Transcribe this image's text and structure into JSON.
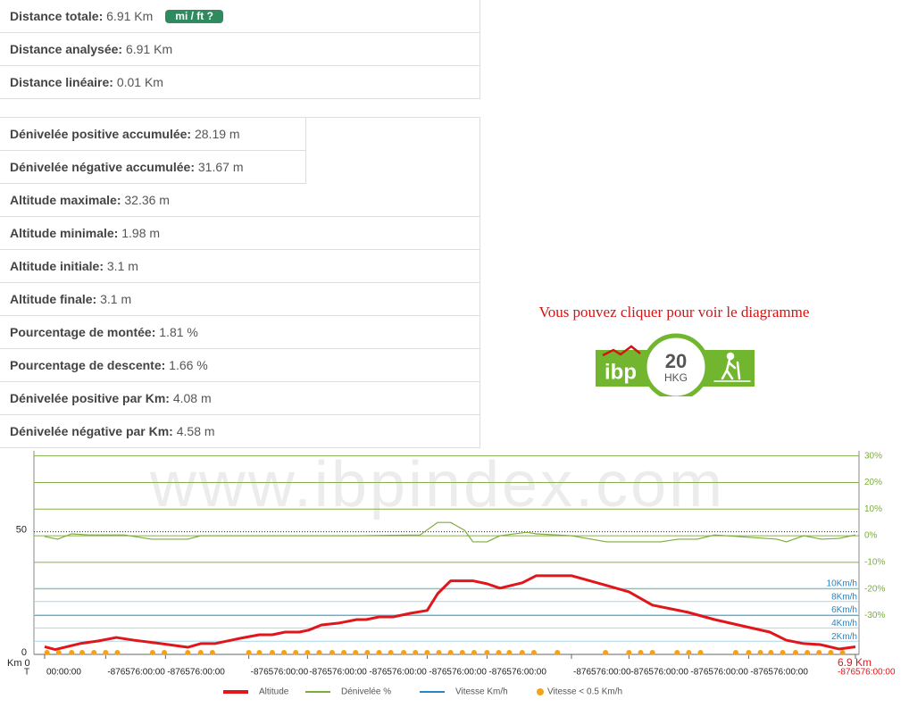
{
  "stats": {
    "toggle": "mi / ft ?",
    "groups": [
      [
        {
          "label": "Distance totale:",
          "value": "6.91 Km"
        },
        {
          "label": "Distance analysée:",
          "value": "6.91 Km"
        },
        {
          "label": "Distance linéaire:",
          "value": "0.01 Km"
        }
      ],
      [
        {
          "label": "Dénivelée positive accumulée:",
          "value": "28.19 m"
        },
        {
          "label": "Dénivelée négative accumulée:",
          "value": "31.67 m"
        },
        {
          "label": "Altitude maximale:",
          "value": "32.36 m"
        },
        {
          "label": "Altitude minimale:",
          "value": "1.98 m"
        },
        {
          "label": "Altitude initiale:",
          "value": "3.1 m"
        },
        {
          "label": "Altitude finale:",
          "value": "3.1 m"
        },
        {
          "label": "Pourcentage de montée:",
          "value": "1.81 %"
        },
        {
          "label": "Pourcentage de descente:",
          "value": "1.66 %"
        },
        {
          "label": "Dénivelée positive par Km:",
          "value": "4.08 m"
        },
        {
          "label": "Dénivelée négative par Km:",
          "value": "4.58 m"
        }
      ]
    ]
  },
  "badge": {
    "caption": "Vous pouvez cliquer pour voir le diagramme",
    "logo": "ibp",
    "score": "20",
    "code": "HKG"
  },
  "chart_data": {
    "type": "line",
    "watermark": "www.ibpindex.com",
    "x_start_label": "Km 0",
    "x_end_label": "6.9 Km",
    "time_axis_label": "T",
    "xlim": [
      0,
      6.91
    ],
    "xticks": [
      {
        "value": 0,
        "label": "00:00:00"
      },
      {
        "value": 0.52,
        "label": "-876576:00:00"
      },
      {
        "value": 1.03,
        "label": "-876576:00:00"
      },
      {
        "value": 1.74,
        "label": "-876576:00:00"
      },
      {
        "value": 2.24,
        "label": "-876576:00:00"
      },
      {
        "value": 2.75,
        "label": "-876576:00:00"
      },
      {
        "value": 3.26,
        "label": "-876576:00:00"
      },
      {
        "value": 3.77,
        "label": "-876576:00:00"
      },
      {
        "value": 4.49,
        "label": "-876576:00:00"
      },
      {
        "value": 4.98,
        "label": "-876576:00:00"
      },
      {
        "value": 5.49,
        "label": "-876576:00:00"
      },
      {
        "value": 6.0,
        "label": "-876576:00:00"
      },
      {
        "value": 6.91,
        "label": "-876576:00:00"
      }
    ],
    "ylim": [
      0,
      83
    ],
    "yticks": [
      0,
      50
    ],
    "y2lim": [
      -44.6,
      31.9
    ],
    "y2ticks": [
      {
        "value": 30,
        "label": "30%"
      },
      {
        "value": 20,
        "label": "20%"
      },
      {
        "value": 10,
        "label": "10%"
      },
      {
        "value": 0,
        "label": "0%"
      },
      {
        "value": -10,
        "label": "-10%"
      },
      {
        "value": -20,
        "label": "-20%"
      },
      {
        "value": -30,
        "label": "-30%"
      }
    ],
    "y3lim": [
      0,
      30.8
    ],
    "y3ticks": [
      {
        "value": 10,
        "label": "10Km/h"
      },
      {
        "value": 8,
        "label": "8Km/h"
      },
      {
        "value": 6,
        "label": "6Km/h"
      },
      {
        "value": 4,
        "label": "4Km/h"
      },
      {
        "value": 2,
        "label": "2Km/h"
      }
    ],
    "series": [
      {
        "name": "Altitude",
        "color": "#e0161b",
        "axis": "y",
        "x": [
          0,
          0.09,
          0.3,
          0.46,
          0.61,
          0.76,
          0.99,
          1.22,
          1.33,
          1.45,
          1.67,
          1.83,
          1.94,
          2.05,
          2.17,
          2.25,
          2.36,
          2.51,
          2.66,
          2.74,
          2.85,
          2.97,
          3.12,
          3.26,
          3.35,
          3.46,
          3.65,
          3.77,
          3.88,
          4.07,
          4.19,
          4.49,
          4.79,
          4.98,
          5.18,
          5.48,
          5.71,
          5.94,
          6.18,
          6.32,
          6.47,
          6.61,
          6.77,
          6.91
        ],
        "values": [
          3.1,
          1.98,
          4.4,
          5.5,
          6.9,
          5.8,
          4.4,
          2.9,
          4.4,
          4.4,
          6.6,
          8.0,
          8.0,
          9.1,
          9.1,
          9.9,
          12.0,
          12.8,
          14.2,
          14.2,
          15.3,
          15.3,
          16.8,
          17.9,
          24.8,
          30.0,
          30.0,
          28.8,
          27.0,
          29.2,
          32.1,
          32.1,
          28.1,
          25.5,
          20.1,
          17.2,
          14.2,
          11.7,
          9.1,
          5.8,
          4.4,
          4.0,
          2.2,
          3.1
        ]
      },
      {
        "name": "Dénivelée %",
        "color": "#7cad3e",
        "axis": "y2",
        "x": [
          0,
          0.11,
          0.23,
          0.38,
          0.68,
          0.91,
          1.22,
          1.33,
          1.9,
          2.66,
          3.2,
          3.35,
          3.46,
          3.58,
          3.65,
          3.77,
          3.88,
          4.11,
          4.19,
          4.49,
          4.79,
          5.25,
          5.4,
          5.56,
          5.71,
          6.24,
          6.32,
          6.47,
          6.62,
          6.77,
          6.91
        ],
        "values": [
          -0.3,
          -1.3,
          0.7,
          0.3,
          0.3,
          -1.3,
          -1.3,
          0,
          0,
          0,
          0.3,
          5.0,
          5.0,
          2.0,
          -2.3,
          -2.3,
          0,
          1.3,
          0.7,
          0,
          -2.3,
          -2.3,
          -1.3,
          -1.3,
          0.3,
          -1.3,
          -2.3,
          0,
          -1.3,
          -1.0,
          0.3
        ]
      },
      {
        "name": "Vitesse Km/h",
        "color": "#2a85c4",
        "axis": "y3",
        "x": [],
        "values": []
      },
      {
        "name": "Vitesse < 0.5 Km/h",
        "color": "#f5a21a",
        "axis": "y3",
        "marker": "dot",
        "x": [
          0.02,
          0.12,
          0.23,
          0.32,
          0.42,
          0.52,
          0.62,
          0.92,
          1.02,
          1.22,
          1.33,
          1.43,
          1.74,
          1.83,
          1.94,
          2.04,
          2.14,
          2.24,
          2.34,
          2.45,
          2.55,
          2.65,
          2.75,
          2.85,
          2.95,
          3.06,
          3.16,
          3.26,
          3.36,
          3.46,
          3.56,
          3.66,
          3.77,
          3.87,
          3.96,
          4.07,
          4.17,
          4.37,
          4.78,
          4.98,
          5.08,
          5.18,
          5.39,
          5.49,
          5.59,
          5.89,
          6.0,
          6.1,
          6.19,
          6.29,
          6.4,
          6.5,
          6.6,
          6.7,
          6.8
        ],
        "values": [
          0,
          0,
          0,
          0,
          0,
          0,
          0,
          0,
          0,
          0,
          0,
          0,
          0,
          0,
          0,
          0,
          0,
          0,
          0,
          0,
          0,
          0,
          0,
          0,
          0,
          0,
          0,
          0,
          0,
          0,
          0,
          0,
          0,
          0,
          0,
          0,
          0,
          0,
          0,
          0,
          0,
          0,
          0,
          0,
          0,
          0,
          0,
          0,
          0,
          0,
          0,
          0,
          0,
          0,
          0
        ]
      }
    ]
  }
}
